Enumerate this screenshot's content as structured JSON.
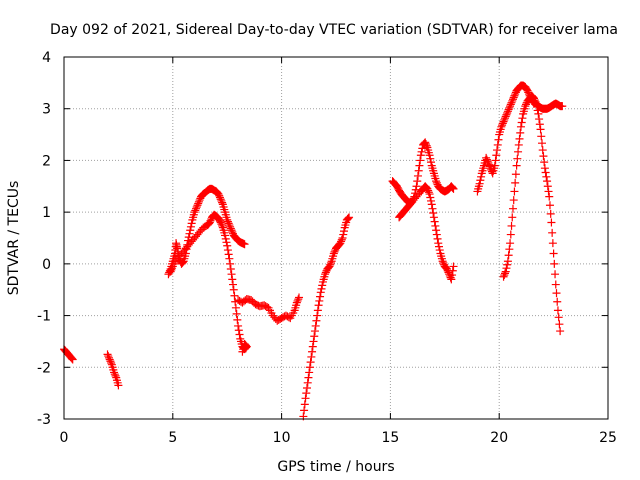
{
  "chart_data": {
    "type": "scatter",
    "title": "Day 092 of 2021, Sidereal Day-to-day VTEC variation (SDTVAR) for receiver lama",
    "xlabel": "GPS time / hours",
    "ylabel": "SDTVAR / TECUs",
    "xlim": [
      0,
      25
    ],
    "ylim": [
      -3,
      4
    ],
    "xticks": [
      "0",
      "5",
      "10",
      "15",
      "20",
      "25"
    ],
    "yticks": [
      "-3",
      "-2",
      "-1",
      "0",
      "1",
      "2",
      "3",
      "4"
    ],
    "grid": true,
    "marker": "plus",
    "color": "#ff0000",
    "series": [
      {
        "name": "SDTVAR",
        "segments": [
          [
            [
              0.0,
              -1.65
            ],
            [
              0.1,
              -1.7
            ],
            [
              0.2,
              -1.75
            ],
            [
              0.3,
              -1.8
            ],
            [
              0.4,
              -1.85
            ]
          ],
          [
            [
              2.0,
              -1.75
            ],
            [
              2.1,
              -1.85
            ],
            [
              2.2,
              -1.95
            ],
            [
              2.3,
              -2.1
            ],
            [
              2.4,
              -2.2
            ],
            [
              2.5,
              -2.35
            ]
          ],
          [
            [
              4.8,
              -0.2
            ],
            [
              4.9,
              -0.1
            ],
            [
              5.0,
              0.05
            ],
            [
              5.1,
              0.2
            ],
            [
              5.15,
              0.4
            ],
            [
              5.2,
              0.3
            ],
            [
              5.3,
              0.1
            ],
            [
              5.4,
              0.0
            ],
            [
              5.5,
              0.05
            ],
            [
              5.6,
              0.2
            ],
            [
              5.7,
              0.45
            ],
            [
              5.8,
              0.65
            ],
            [
              5.9,
              0.85
            ],
            [
              6.0,
              1.0
            ],
            [
              6.1,
              1.1
            ],
            [
              6.2,
              1.2
            ],
            [
              6.3,
              1.3
            ],
            [
              6.4,
              1.35
            ],
            [
              6.5,
              1.38
            ],
            [
              6.6,
              1.42
            ],
            [
              6.7,
              1.45
            ],
            [
              6.8,
              1.45
            ],
            [
              6.9,
              1.42
            ],
            [
              7.0,
              1.4
            ],
            [
              7.1,
              1.35
            ],
            [
              7.2,
              1.25
            ],
            [
              7.3,
              1.15
            ],
            [
              7.4,
              1.0
            ],
            [
              7.5,
              0.85
            ],
            [
              7.6,
              0.75
            ],
            [
              7.7,
              0.65
            ],
            [
              7.8,
              0.55
            ],
            [
              7.9,
              0.5
            ],
            [
              8.0,
              0.45
            ],
            [
              8.1,
              0.42
            ],
            [
              8.2,
              0.4
            ],
            [
              8.3,
              0.38
            ]
          ],
          [
            [
              4.9,
              -0.15
            ],
            [
              5.0,
              -0.05
            ],
            [
              5.2,
              0.1
            ],
            [
              5.4,
              0.2
            ],
            [
              5.6,
              0.3
            ],
            [
              5.8,
              0.4
            ],
            [
              6.0,
              0.5
            ],
            [
              6.2,
              0.6
            ],
            [
              6.4,
              0.7
            ],
            [
              6.6,
              0.75
            ],
            [
              6.7,
              0.8
            ],
            [
              6.8,
              0.9
            ],
            [
              6.9,
              0.95
            ],
            [
              7.0,
              0.92
            ],
            [
              7.1,
              0.88
            ],
            [
              7.2,
              0.8
            ],
            [
              7.3,
              0.7
            ],
            [
              7.4,
              0.55
            ],
            [
              7.5,
              0.35
            ],
            [
              7.6,
              0.1
            ],
            [
              7.7,
              -0.2
            ],
            [
              7.8,
              -0.5
            ],
            [
              7.9,
              -0.85
            ],
            [
              8.0,
              -1.2
            ],
            [
              8.1,
              -1.45
            ],
            [
              8.2,
              -1.6
            ],
            [
              8.3,
              -1.65
            ],
            [
              8.4,
              -1.6
            ],
            [
              8.3,
              -1.55
            ],
            [
              8.2,
              -1.7
            ]
          ],
          [
            [
              8.0,
              -0.7
            ],
            [
              8.2,
              -0.75
            ],
            [
              8.4,
              -0.68
            ],
            [
              8.6,
              -0.7
            ],
            [
              8.8,
              -0.78
            ],
            [
              9.0,
              -0.82
            ],
            [
              9.2,
              -0.8
            ],
            [
              9.4,
              -0.85
            ],
            [
              9.6,
              -1.0
            ],
            [
              9.8,
              -1.1
            ],
            [
              10.0,
              -1.05
            ],
            [
              10.2,
              -1.0
            ],
            [
              10.4,
              -1.05
            ],
            [
              10.6,
              -0.9
            ],
            [
              10.7,
              -0.75
            ],
            [
              10.8,
              -0.65
            ]
          ],
          [
            [
              11.0,
              -2.95
            ],
            [
              11.1,
              -2.6
            ],
            [
              11.2,
              -2.3
            ],
            [
              11.3,
              -2.0
            ],
            [
              11.4,
              -1.7
            ],
            [
              11.5,
              -1.4
            ],
            [
              11.6,
              -1.1
            ],
            [
              11.7,
              -0.8
            ],
            [
              11.8,
              -0.55
            ],
            [
              11.9,
              -0.35
            ],
            [
              12.0,
              -0.2
            ],
            [
              12.1,
              -0.1
            ],
            [
              12.2,
              -0.05
            ],
            [
              12.3,
              0.05
            ],
            [
              12.4,
              0.2
            ],
            [
              12.5,
              0.3
            ],
            [
              12.6,
              0.35
            ],
            [
              12.7,
              0.4
            ],
            [
              12.8,
              0.5
            ],
            [
              12.9,
              0.7
            ],
            [
              13.0,
              0.85
            ],
            [
              13.1,
              0.9
            ]
          ],
          [
            [
              15.1,
              1.6
            ],
            [
              15.2,
              1.55
            ],
            [
              15.3,
              1.5
            ],
            [
              15.4,
              1.42
            ],
            [
              15.5,
              1.35
            ],
            [
              15.6,
              1.3
            ],
            [
              15.7,
              1.25
            ],
            [
              15.8,
              1.2
            ],
            [
              15.9,
              1.18
            ],
            [
              16.0,
              1.2
            ],
            [
              16.1,
              1.3
            ],
            [
              16.2,
              1.5
            ],
            [
              16.3,
              1.8
            ],
            [
              16.4,
              2.1
            ],
            [
              16.5,
              2.3
            ],
            [
              16.6,
              2.35
            ],
            [
              16.7,
              2.25
            ],
            [
              16.8,
              2.1
            ],
            [
              16.9,
              1.9
            ],
            [
              17.0,
              1.75
            ],
            [
              17.1,
              1.6
            ],
            [
              17.2,
              1.5
            ],
            [
              17.3,
              1.45
            ],
            [
              17.4,
              1.42
            ],
            [
              17.5,
              1.4
            ],
            [
              17.6,
              1.42
            ],
            [
              17.7,
              1.45
            ],
            [
              17.8,
              1.5
            ],
            [
              17.9,
              1.45
            ]
          ],
          [
            [
              15.4,
              0.9
            ],
            [
              15.5,
              0.95
            ],
            [
              15.6,
              1.0
            ],
            [
              15.7,
              1.05
            ],
            [
              15.8,
              1.1
            ],
            [
              15.9,
              1.15
            ],
            [
              16.0,
              1.2
            ],
            [
              16.2,
              1.3
            ],
            [
              16.4,
              1.4
            ],
            [
              16.5,
              1.45
            ],
            [
              16.6,
              1.5
            ],
            [
              16.7,
              1.45
            ],
            [
              16.8,
              1.35
            ],
            [
              16.9,
              1.15
            ],
            [
              17.0,
              0.9
            ],
            [
              17.1,
              0.65
            ],
            [
              17.2,
              0.4
            ],
            [
              17.3,
              0.2
            ],
            [
              17.4,
              0.05
            ],
            [
              17.5,
              -0.05
            ],
            [
              17.6,
              -0.1
            ],
            [
              17.7,
              -0.2
            ],
            [
              17.8,
              -0.3
            ],
            [
              17.9,
              -0.05
            ]
          ],
          [
            [
              19.0,
              1.4
            ],
            [
              19.1,
              1.55
            ],
            [
              19.2,
              1.75
            ],
            [
              19.3,
              1.9
            ],
            [
              19.4,
              2.05
            ],
            [
              19.5,
              1.95
            ],
            [
              19.6,
              1.85
            ],
            [
              19.7,
              1.75
            ],
            [
              19.8,
              1.9
            ],
            [
              19.9,
              2.2
            ],
            [
              20.0,
              2.5
            ],
            [
              20.1,
              2.65
            ],
            [
              20.2,
              2.75
            ],
            [
              20.3,
              2.85
            ],
            [
              20.4,
              2.95
            ],
            [
              20.5,
              3.05
            ],
            [
              20.6,
              3.15
            ],
            [
              20.7,
              3.25
            ],
            [
              20.8,
              3.35
            ],
            [
              20.9,
              3.4
            ],
            [
              21.0,
              3.45
            ],
            [
              21.1,
              3.45
            ],
            [
              21.2,
              3.42
            ],
            [
              21.3,
              3.35
            ],
            [
              21.4,
              3.25
            ],
            [
              21.5,
              3.15
            ],
            [
              21.6,
              3.12
            ],
            [
              21.7,
              3.1
            ],
            [
              21.8,
              3.05
            ],
            [
              21.9,
              3.02
            ],
            [
              22.0,
              3.0
            ],
            [
              22.1,
              3.0
            ],
            [
              22.2,
              3.0
            ],
            [
              22.3,
              3.02
            ],
            [
              22.4,
              3.05
            ],
            [
              22.5,
              3.08
            ],
            [
              22.6,
              3.1
            ],
            [
              22.7,
              3.08
            ],
            [
              22.8,
              3.05
            ],
            [
              22.9,
              3.05
            ]
          ],
          [
            [
              20.2,
              -0.25
            ],
            [
              20.3,
              -0.15
            ],
            [
              20.4,
              0.05
            ],
            [
              20.5,
              0.4
            ],
            [
              20.6,
              0.9
            ],
            [
              20.7,
              1.4
            ],
            [
              20.8,
              1.9
            ],
            [
              20.9,
              2.3
            ],
            [
              21.0,
              2.65
            ],
            [
              21.1,
              2.9
            ],
            [
              21.2,
              3.05
            ],
            [
              21.3,
              3.15
            ],
            [
              21.4,
              3.2
            ],
            [
              21.5,
              3.25
            ],
            [
              21.6,
              3.2
            ],
            [
              21.7,
              3.1
            ],
            [
              21.8,
              2.9
            ],
            [
              21.9,
              2.6
            ],
            [
              22.0,
              2.2
            ],
            [
              22.1,
              1.85
            ],
            [
              22.2,
              1.6
            ],
            [
              22.3,
              1.3
            ],
            [
              22.4,
              0.8
            ],
            [
              22.5,
              0.2
            ],
            [
              22.6,
              -0.4
            ],
            [
              22.7,
              -0.9
            ],
            [
              22.8,
              -1.3
            ]
          ]
        ]
      }
    ]
  }
}
